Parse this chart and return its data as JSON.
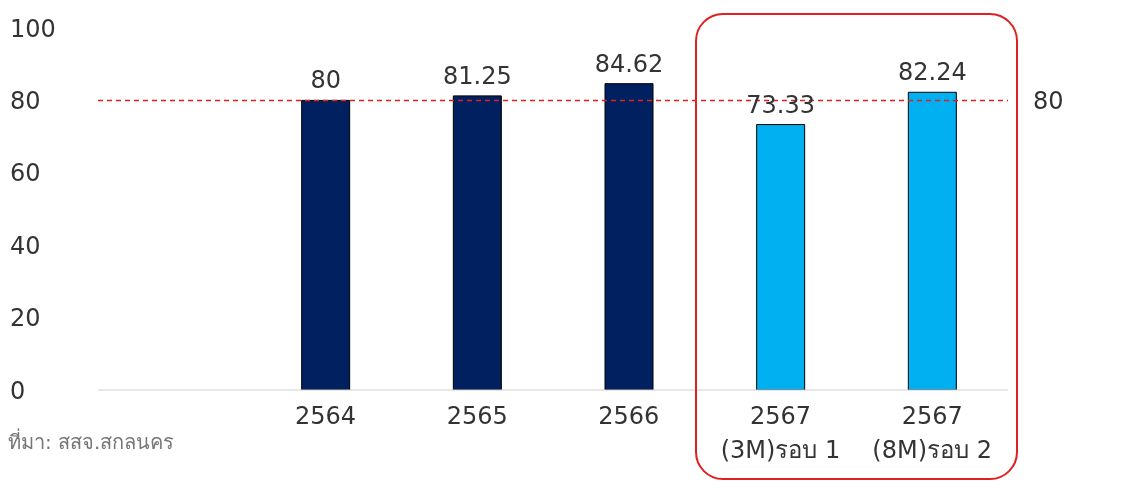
{
  "chart_data": {
    "type": "bar",
    "categories": [
      null,
      "2564",
      "2565",
      "2566",
      "2567\n(3M)รอบ 1",
      "2567\n(8M)รอบ 2"
    ],
    "values": [
      null,
      80,
      81.25,
      84.62,
      73.33,
      82.24
    ],
    "colors": [
      "#002060",
      "#002060",
      "#002060",
      "#002060",
      "#00b0f0",
      "#00b0f0"
    ],
    "ylim": [
      0,
      100
    ],
    "yticks": [
      0,
      20,
      40,
      60,
      80,
      100
    ],
    "grid": false,
    "data_labels": true,
    "ref_lines": [
      {
        "axis": "y",
        "value": 80,
        "label": "80",
        "color": "#e02020",
        "line_style": "dashed"
      }
    ],
    "annotations": [
      "ที่มา: สสจ.สกลนคร"
    ]
  }
}
